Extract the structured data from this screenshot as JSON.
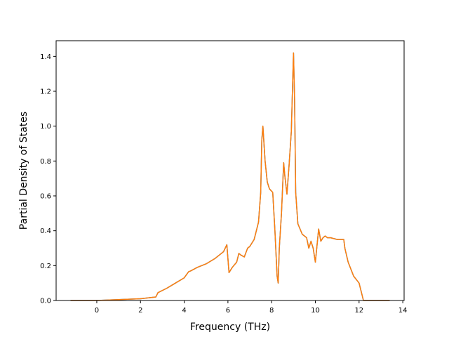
{
  "chart_data": {
    "type": "line",
    "title": "",
    "xlabel": "Frequency (THz)",
    "ylabel": "Partial Density of States",
    "xlim": [
      -1.86,
      14.06
    ],
    "ylim": [
      0.0,
      1.49
    ],
    "xticks": [
      0,
      2,
      4,
      6,
      8,
      10,
      12,
      14
    ],
    "yticks": [
      0.0,
      0.2,
      0.4,
      0.6,
      0.8,
      1.0,
      1.2,
      1.4
    ],
    "xtick_labels": [
      "0",
      "2",
      "4",
      "6",
      "8",
      "10",
      "12",
      "14"
    ],
    "ytick_labels": [
      "0.0",
      "0.2",
      "0.4",
      "0.6",
      "0.8",
      "1.0",
      "1.2",
      "1.4"
    ],
    "grid": false,
    "legend": "none",
    "series": [
      {
        "color": "#1f77b4",
        "x": [
          -1.2,
          0.0,
          1.0,
          2.0,
          2.7,
          2.8,
          3.2,
          3.6,
          4.0,
          4.2,
          4.3,
          4.6,
          5.0,
          5.4,
          5.8,
          5.95,
          6.05,
          6.2,
          6.4,
          6.5,
          6.6,
          6.75,
          6.9,
          7.0,
          7.2,
          7.4,
          7.5,
          7.55,
          7.6,
          7.7,
          7.8,
          7.9,
          8.05,
          8.15,
          8.25,
          8.3,
          8.35,
          8.45,
          8.55,
          8.6,
          8.7,
          8.8,
          8.9,
          9.0,
          9.05,
          9.1,
          9.2,
          9.4,
          9.6,
          9.7,
          9.8,
          9.9,
          10.0,
          10.15,
          10.25,
          10.35,
          10.45,
          10.55,
          10.7,
          11.0,
          11.3,
          11.35,
          11.5,
          11.75,
          12.0,
          12.1,
          12.2,
          12.4,
          13.4
        ],
        "values": [
          0.0,
          0.0,
          0.005,
          0.01,
          0.02,
          0.045,
          0.07,
          0.1,
          0.13,
          0.165,
          0.17,
          0.19,
          0.21,
          0.24,
          0.28,
          0.32,
          0.16,
          0.19,
          0.22,
          0.27,
          0.26,
          0.25,
          0.3,
          0.31,
          0.35,
          0.45,
          0.62,
          0.92,
          1.0,
          0.8,
          0.68,
          0.64,
          0.62,
          0.4,
          0.14,
          0.1,
          0.3,
          0.5,
          0.79,
          0.72,
          0.61,
          0.78,
          0.97,
          1.42,
          1.15,
          0.62,
          0.44,
          0.38,
          0.36,
          0.3,
          0.34,
          0.3,
          0.22,
          0.41,
          0.34,
          0.36,
          0.37,
          0.36,
          0.36,
          0.35,
          0.35,
          0.3,
          0.22,
          0.14,
          0.1,
          0.05,
          0.0,
          0.0,
          0.0
        ]
      },
      {
        "color": "#ff7f0e",
        "x": [
          -1.2,
          0.0,
          1.0,
          2.0,
          2.7,
          2.8,
          3.2,
          3.6,
          4.0,
          4.2,
          4.3,
          4.6,
          5.0,
          5.4,
          5.8,
          5.95,
          6.05,
          6.2,
          6.4,
          6.5,
          6.6,
          6.75,
          6.9,
          7.0,
          7.2,
          7.4,
          7.5,
          7.55,
          7.6,
          7.7,
          7.8,
          7.9,
          8.05,
          8.15,
          8.25,
          8.3,
          8.35,
          8.45,
          8.55,
          8.6,
          8.7,
          8.8,
          8.9,
          9.0,
          9.05,
          9.1,
          9.2,
          9.4,
          9.6,
          9.7,
          9.8,
          9.9,
          10.0,
          10.15,
          10.25,
          10.35,
          10.45,
          10.55,
          10.7,
          11.0,
          11.3,
          11.35,
          11.5,
          11.75,
          12.0,
          12.1,
          12.2,
          12.4,
          13.4
        ],
        "values": [
          0.0,
          0.0,
          0.005,
          0.01,
          0.02,
          0.045,
          0.07,
          0.1,
          0.13,
          0.165,
          0.17,
          0.19,
          0.21,
          0.24,
          0.28,
          0.32,
          0.16,
          0.19,
          0.22,
          0.27,
          0.26,
          0.25,
          0.3,
          0.31,
          0.35,
          0.45,
          0.62,
          0.92,
          1.0,
          0.8,
          0.68,
          0.64,
          0.62,
          0.4,
          0.14,
          0.1,
          0.3,
          0.5,
          0.79,
          0.72,
          0.61,
          0.78,
          0.97,
          1.42,
          1.15,
          0.62,
          0.44,
          0.38,
          0.36,
          0.3,
          0.34,
          0.3,
          0.22,
          0.41,
          0.34,
          0.36,
          0.37,
          0.36,
          0.36,
          0.35,
          0.35,
          0.3,
          0.22,
          0.14,
          0.1,
          0.05,
          0.0,
          0.0,
          0.0
        ]
      }
    ]
  }
}
